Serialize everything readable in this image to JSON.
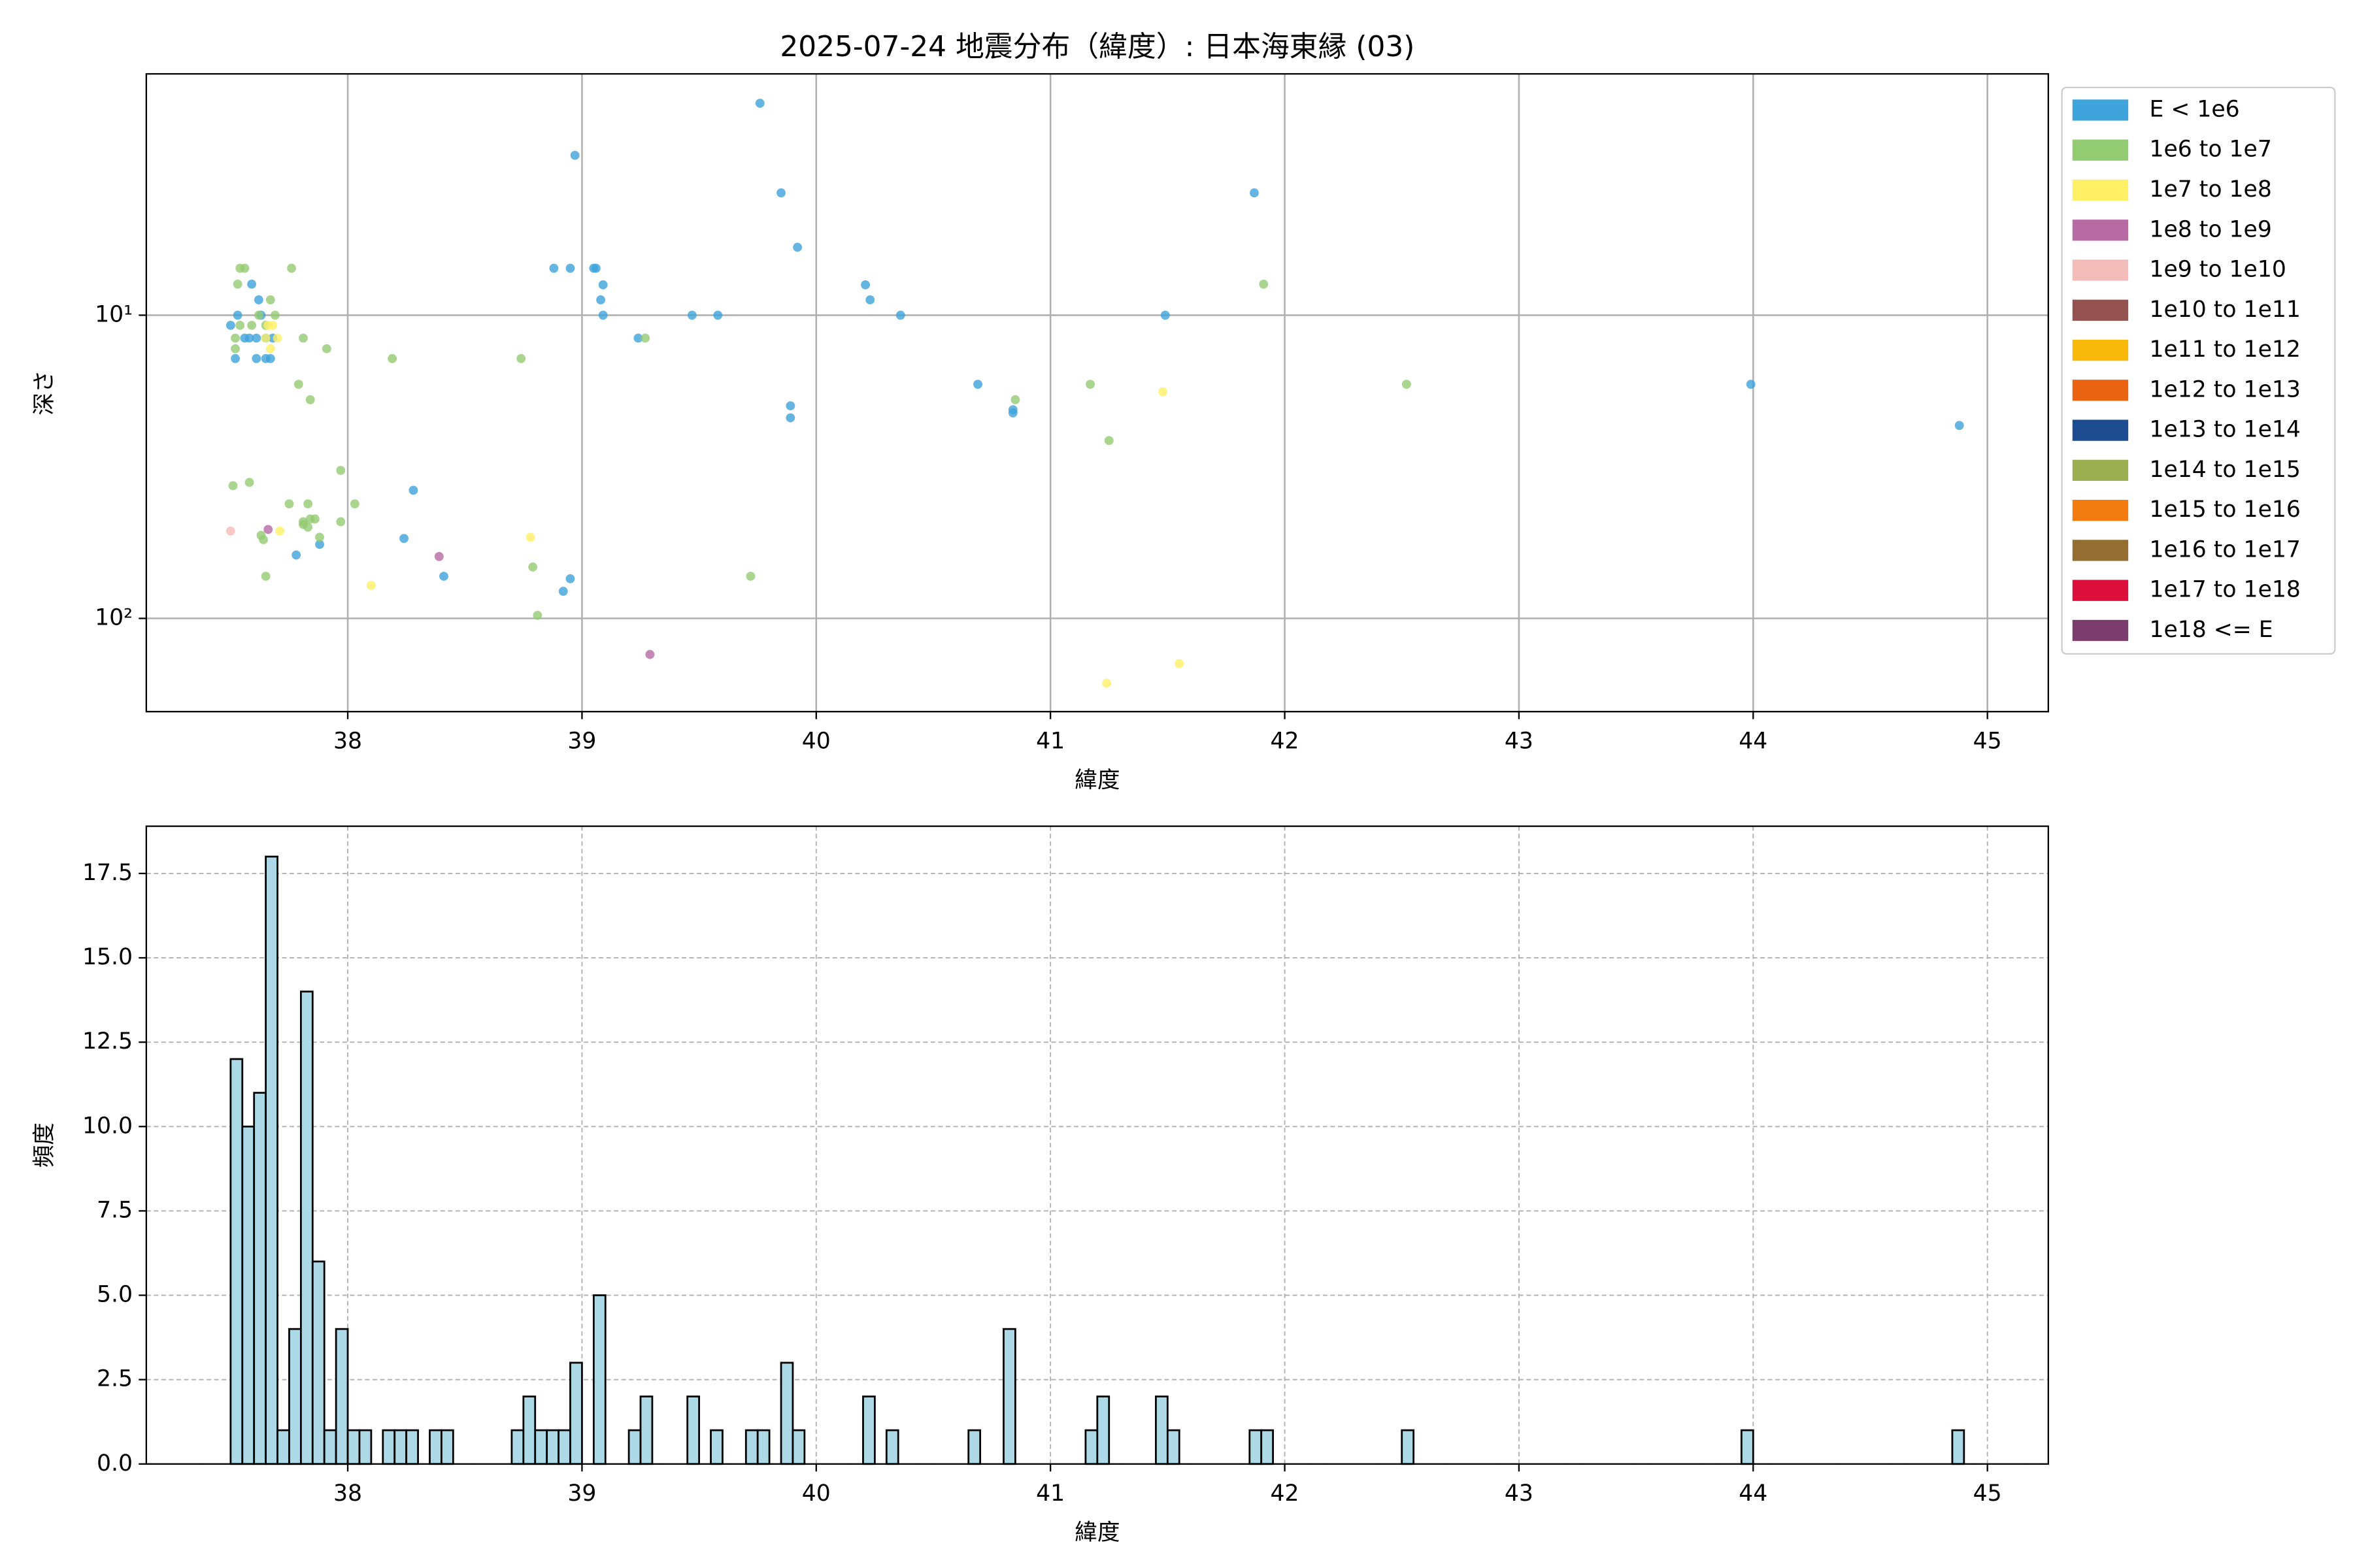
{
  "chart_data": [
    {
      "type": "scatter",
      "title": "2025-07-24 地震分布（緯度）: 日本海東縁 (03)",
      "xlabel": "緯度",
      "ylabel": "深さ",
      "xlim": [
        37.14,
        45.26
      ],
      "ylim": [
        1.6,
        203
      ],
      "yscale": "log",
      "y_inverted": true,
      "xticks": [
        38,
        39,
        40,
        41,
        42,
        43,
        44,
        45
      ],
      "yticks": [
        {
          "value": 10,
          "label": "10¹"
        },
        {
          "value": 100,
          "label": "10²"
        }
      ],
      "grid": true,
      "legend": "outside right",
      "series": [
        {
          "name": "E < 1e6",
          "color": "#3fa3dc",
          "x": [
            39.76,
            38.97,
            39.85,
            41.87,
            39.92,
            38.88,
            38.95,
            39.05,
            39.06,
            39.09,
            40.21,
            40.23,
            39.08,
            39.09,
            39.47,
            39.58,
            40.36,
            41.49,
            39.24,
            40.69,
            43.99,
            39.89,
            39.89,
            40.84,
            40.84,
            44.88,
            38.28,
            38.24,
            37.88,
            37.78,
            38.41,
            38.95,
            38.92,
            37.5,
            37.53,
            37.52,
            37.56,
            37.58,
            37.59,
            37.62,
            37.63,
            37.61,
            37.65,
            37.61,
            37.65,
            37.67,
            37.68
          ],
          "values": [
            2.0,
            2.97,
            3.95,
            3.95,
            5.97,
            7,
            7,
            7,
            7,
            7.94,
            7.94,
            8.9,
            8.9,
            10,
            10,
            10,
            10,
            10,
            11.9,
            16.9,
            16.9,
            19.9,
            21.8,
            20.5,
            21,
            23.1,
            37.8,
            54.5,
            57,
            61.8,
            72.6,
            74,
            81.4,
            10.8,
            10,
            13.9,
            11.9,
            11.9,
            7.9,
            8.9,
            10,
            11.9,
            11.9,
            13.9,
            13.9,
            13.9,
            11.9
          ]
        },
        {
          "name": "1e6 to 1e7",
          "color": "#93cb72",
          "x": [
            37.76,
            37.54,
            37.56,
            37.53,
            41.91,
            37.67,
            37.62,
            37.69,
            37.54,
            37.59,
            37.65,
            37.52,
            37.52,
            37.81,
            37.91,
            38.19,
            38.74,
            39.27,
            37.79,
            37.84,
            41.17,
            42.52,
            40.85,
            41.25,
            37.97,
            37.51,
            37.58,
            37.75,
            37.83,
            38.03,
            37.63,
            37.64,
            37.88,
            37.65,
            38.79,
            39.72,
            38.81,
            37.84,
            37.86,
            37.81,
            37.97,
            37.81,
            37.83
          ],
          "values": [
            7,
            7,
            7,
            7.9,
            7.9,
            8.9,
            10,
            10,
            10.8,
            10.8,
            10.8,
            11.9,
            12.9,
            11.9,
            12.9,
            13.9,
            13.9,
            11.9,
            16.9,
            19,
            16.9,
            16.9,
            19,
            25.9,
            32.5,
            36.5,
            35.6,
            41.9,
            41.9,
            41.9,
            53.2,
            55,
            54,
            72.6,
            67.7,
            72.6,
            97.7,
            47,
            47,
            48,
            48,
            49,
            50
          ]
        },
        {
          "name": "1e7 to 1e8",
          "color": "#fff066",
          "x": [
            37.66,
            37.68,
            37.65,
            37.7,
            37.71,
            38.1,
            38.78,
            41.48,
            41.24,
            41.55,
            37.67
          ],
          "values": [
            10.8,
            10.8,
            11.9,
            11.9,
            51.5,
            77.8,
            54,
            17.9,
            163.6,
            141,
            12.9
          ]
        },
        {
          "name": "1e8 to 1e9",
          "color": "#b76aa4",
          "x": [
            37.66,
            38.39,
            39.29
          ],
          "values": [
            50.9,
            62.5,
            131.5
          ]
        },
        {
          "name": "1e9 to 1e10",
          "color": "#f4bcb8",
          "x": [
            37.5
          ],
          "values": [
            51.5
          ]
        },
        {
          "name": "1e10 to 1e11",
          "color": "#93524f",
          "x": [],
          "values": []
        },
        {
          "name": "1e11 to 1e12",
          "color": "#f8b90b",
          "x": [],
          "values": []
        },
        {
          "name": "1e12 to 1e13",
          "color": "#ea6310",
          "x": [],
          "values": []
        },
        {
          "name": "1e13 to 1e14",
          "color": "#1c4b90",
          "x": [],
          "values": []
        },
        {
          "name": "1e14 to 1e15",
          "color": "#9cad52",
          "x": [],
          "values": []
        },
        {
          "name": "1e15 to 1e16",
          "color": "#f37c10",
          "x": [],
          "values": []
        },
        {
          "name": "1e16 to 1e17",
          "color": "#946d32",
          "x": [],
          "values": []
        },
        {
          "name": "1e17 to 1e18",
          "color": "#dc0f3c",
          "x": [],
          "values": []
        },
        {
          "name": "1e18 <= E",
          "color": "#7a3d6e",
          "x": [],
          "values": []
        }
      ]
    },
    {
      "type": "histogram",
      "xlabel": "緯度",
      "ylabel": "頻度",
      "color": "#add8e6",
      "edgecolor": "#000000",
      "xlim": [
        37.14,
        45.26
      ],
      "ylim": [
        0,
        18.9
      ],
      "xticks": [
        38,
        39,
        40,
        41,
        42,
        43,
        44,
        45
      ],
      "yticks": [
        {
          "value": 0,
          "label": "0.0"
        },
        2.5,
        {
          "value": 5,
          "label": "5.0"
        },
        7.5,
        {
          "value": 10,
          "label": "10.0"
        },
        12.5,
        {
          "value": 15,
          "label": "15.0"
        },
        17.5
      ],
      "grid": "dashed",
      "bins": [
        37.5,
        37.55,
        37.6,
        37.65,
        37.7,
        37.75,
        37.8,
        37.85,
        37.9,
        37.95,
        38,
        38.05,
        38.1,
        38.15,
        38.2,
        38.25,
        38.3,
        38.35,
        38.4,
        38.45,
        38.5,
        38.55,
        38.6,
        38.65,
        38.7,
        38.75,
        38.8,
        38.85,
        38.9,
        38.95,
        39,
        39.05,
        39.1,
        39.15,
        39.2,
        39.25,
        39.3,
        39.35,
        39.4,
        39.45,
        39.5,
        39.55,
        39.6,
        39.65,
        39.7,
        39.75,
        39.8,
        39.85,
        39.9,
        39.95,
        40,
        40.05,
        40.1,
        40.15,
        40.2,
        40.25,
        40.3,
        40.35,
        40.4,
        40.45,
        40.5,
        40.55,
        40.6,
        40.65,
        40.7,
        40.75,
        40.8,
        40.85,
        40.9,
        40.95,
        41,
        41.05,
        41.1,
        41.15,
        41.2,
        41.25,
        41.3,
        41.35,
        41.4,
        41.45,
        41.5,
        41.55,
        41.6,
        41.65,
        41.7,
        41.75,
        41.8,
        41.85,
        41.9,
        41.95,
        42,
        42.05,
        42.1,
        42.15,
        42.2,
        42.25,
        42.3,
        42.35,
        42.4,
        42.45,
        42.5,
        42.55,
        42.6,
        42.65,
        42.7,
        42.75,
        42.8,
        42.85,
        42.9,
        42.95,
        43,
        43.05,
        43.1,
        43.15,
        43.2,
        43.25,
        43.3,
        43.35,
        43.4,
        43.45,
        43.5,
        43.55,
        43.6,
        43.65,
        43.7,
        43.75,
        43.8,
        43.85,
        43.9,
        43.95,
        44,
        44.05,
        44.1,
        44.15,
        44.2,
        44.25,
        44.3,
        44.35,
        44.4,
        44.45,
        44.5,
        44.55,
        44.6,
        44.65,
        44.7,
        44.75,
        44.8,
        44.85,
        44.9
      ],
      "values": [
        12,
        10,
        11,
        18,
        1,
        4,
        14,
        6,
        1,
        4,
        1,
        1,
        0,
        1,
        1,
        1,
        0,
        1,
        1,
        0,
        0,
        0,
        0,
        0,
        1,
        2,
        1,
        1,
        1,
        3,
        0,
        5,
        0,
        0,
        1,
        2,
        0,
        0,
        0,
        2,
        0,
        1,
        0,
        0,
        1,
        1,
        0,
        3,
        1,
        0,
        0,
        0,
        0,
        0,
        2,
        0,
        1,
        0,
        0,
        0,
        0,
        0,
        0,
        1,
        0,
        0,
        4,
        0,
        0,
        0,
        0,
        0,
        0,
        1,
        2,
        0,
        0,
        0,
        0,
        2,
        1,
        0,
        0,
        0,
        0,
        0,
        0,
        1,
        1,
        0,
        0,
        0,
        0,
        0,
        0,
        0,
        0,
        0,
        0,
        0,
        1,
        0,
        0,
        0,
        0,
        0,
        0,
        0,
        0,
        0,
        0,
        0,
        0,
        0,
        0,
        0,
        0,
        0,
        0,
        0,
        0,
        0,
        0,
        0,
        0,
        0,
        0,
        0,
        0,
        1,
        0,
        0,
        0,
        0,
        0,
        0,
        0,
        0,
        0,
        0,
        0,
        0,
        0,
        0,
        0,
        0,
        0,
        1
      ]
    }
  ]
}
